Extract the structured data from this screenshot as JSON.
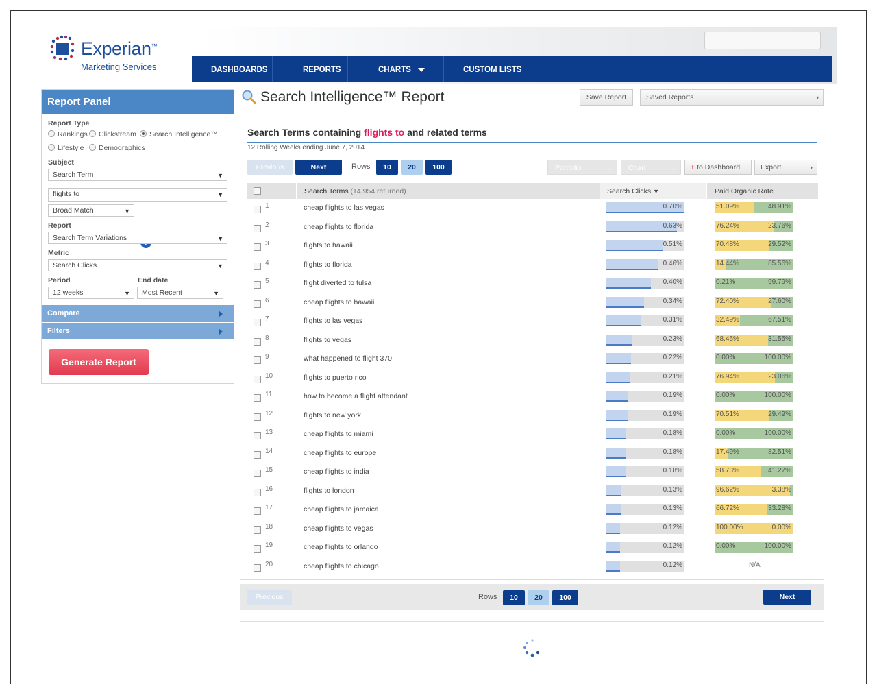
{
  "brand": {
    "name": "Experian",
    "tm": "™",
    "sub": "Marketing Services"
  },
  "nav": [
    "DASHBOARDS",
    "REPORTS",
    "CHARTS",
    "CUSTOM LISTS"
  ],
  "panel": {
    "title": "Report Panel",
    "report_type_label": "Report Type",
    "report_types": [
      "Rankings",
      "Clickstream",
      "Search Intelligence™",
      "Lifestyle",
      "Demographics"
    ],
    "selected_report_type": "Search Intelligence™",
    "subject_label": "Subject",
    "subject_value": "Search Term",
    "term_value": "flights to",
    "match_value": "Broad Match",
    "help": "?",
    "report_label": "Report",
    "report_value": "Search Term Variations",
    "metric_label": "Metric",
    "metric_value": "Search Clicks",
    "period_label": "Period",
    "period_value": "12 weeks",
    "end_date_label": "End date",
    "end_date_value": "Most Recent",
    "compare": "Compare",
    "filters": "Filters",
    "generate": "Generate Report"
  },
  "title": {
    "text": "Search Intelligence™ Report",
    "save": "Save Report",
    "saved": "Saved Reports",
    "saved_arrow": "›"
  },
  "report": {
    "hdr_pre": "Search Terms containing ",
    "hdr_hl": "flights to",
    "hdr_post": " and related terms",
    "sub": "12 Rolling Weeks ending June 7, 2014",
    "previous": "Previous",
    "next": "Next",
    "rows_label": "Rows",
    "rows": [
      "10",
      "20",
      "100"
    ],
    "portfolio": "Portfolio",
    "chart": "Chart",
    "to_dashboard": "to Dashboard",
    "export": "Export",
    "arrow": "›",
    "col_terms": "Search Terms",
    "col_terms_count": "(14,954 returned)",
    "col_clicks": "Search Clicks",
    "col_ratio": "Paid:Organic Rate"
  },
  "rows": [
    {
      "n": "1",
      "term": "cheap flights to las vegas",
      "clicks": "0.70%",
      "c": 0.7,
      "paid": "51.09%",
      "org": "48.91%",
      "p": 51.09
    },
    {
      "n": "2",
      "term": "cheap flights to florida",
      "clicks": "0.63%",
      "c": 0.63,
      "paid": "76.24%",
      "org": "23.76%",
      "p": 76.24
    },
    {
      "n": "3",
      "term": "flights to hawaii",
      "clicks": "0.51%",
      "c": 0.51,
      "paid": "70.48%",
      "org": "29.52%",
      "p": 70.48
    },
    {
      "n": "4",
      "term": "flights to florida",
      "clicks": "0.46%",
      "c": 0.46,
      "paid": "14.44%",
      "org": "85.56%",
      "p": 14.44
    },
    {
      "n": "5",
      "term": "flight diverted to tulsa",
      "clicks": "0.40%",
      "c": 0.4,
      "paid": "0.21%",
      "org": "99.79%",
      "p": 0.21
    },
    {
      "n": "6",
      "term": "cheap flights to hawaii",
      "clicks": "0.34%",
      "c": 0.34,
      "paid": "72.40%",
      "org": "27.60%",
      "p": 72.4
    },
    {
      "n": "7",
      "term": "flights to las vegas",
      "clicks": "0.31%",
      "c": 0.31,
      "paid": "32.49%",
      "org": "67.51%",
      "p": 32.49
    },
    {
      "n": "8",
      "term": "flights to vegas",
      "clicks": "0.23%",
      "c": 0.23,
      "paid": "68.45%",
      "org": "31.55%",
      "p": 68.45
    },
    {
      "n": "9",
      "term": "what happened to flight 370",
      "clicks": "0.22%",
      "c": 0.22,
      "paid": "0.00%",
      "org": "100.00%",
      "p": 0
    },
    {
      "n": "10",
      "term": "flights to puerto rico",
      "clicks": "0.21%",
      "c": 0.21,
      "paid": "76.94%",
      "org": "23.06%",
      "p": 76.94
    },
    {
      "n": "11",
      "term": "how to become a flight attendant",
      "clicks": "0.19%",
      "c": 0.19,
      "paid": "0.00%",
      "org": "100.00%",
      "p": 0
    },
    {
      "n": "12",
      "term": "flights to new york",
      "clicks": "0.19%",
      "c": 0.19,
      "paid": "70.51%",
      "org": "29.49%",
      "p": 70.51
    },
    {
      "n": "13",
      "term": "cheap flights to miami",
      "clicks": "0.18%",
      "c": 0.18,
      "paid": "0.00%",
      "org": "100.00%",
      "p": 0
    },
    {
      "n": "14",
      "term": "cheap flights to europe",
      "clicks": "0.18%",
      "c": 0.18,
      "paid": "17.49%",
      "org": "82.51%",
      "p": 17.49
    },
    {
      "n": "15",
      "term": "cheap flights to india",
      "clicks": "0.18%",
      "c": 0.18,
      "paid": "58.73%",
      "org": "41.27%",
      "p": 58.73
    },
    {
      "n": "16",
      "term": "flights to london",
      "clicks": "0.13%",
      "c": 0.13,
      "paid": "96.62%",
      "org": "3.38%",
      "p": 96.62
    },
    {
      "n": "17",
      "term": "cheap flights to jamaica",
      "clicks": "0.13%",
      "c": 0.13,
      "paid": "66.72%",
      "org": "33.28%",
      "p": 66.72
    },
    {
      "n": "18",
      "term": "cheap flights to vegas",
      "clicks": "0.12%",
      "c": 0.12,
      "paid": "100.00%",
      "org": "0.00%",
      "p": 100
    },
    {
      "n": "19",
      "term": "cheap flights to orlando",
      "clicks": "0.12%",
      "c": 0.12,
      "paid": "0.00%",
      "org": "100.00%",
      "p": 0
    },
    {
      "n": "20",
      "term": "cheap flights to chicago",
      "clicks": "0.12%",
      "c": 0.12,
      "paid": "",
      "org": "",
      "p": null,
      "na": "N/A"
    }
  ],
  "footer": {
    "previous": "Previous",
    "rows_label": "Rows",
    "rows": [
      "10",
      "20",
      "100"
    ],
    "next": "Next"
  },
  "colors": {
    "nav": "#0c3c8c",
    "panel_header": "#4b86c6",
    "accent": "#e0195a",
    "paid": "#f3d77a",
    "organic": "#a8c8a0",
    "click_fill": "#c3d4ee"
  }
}
